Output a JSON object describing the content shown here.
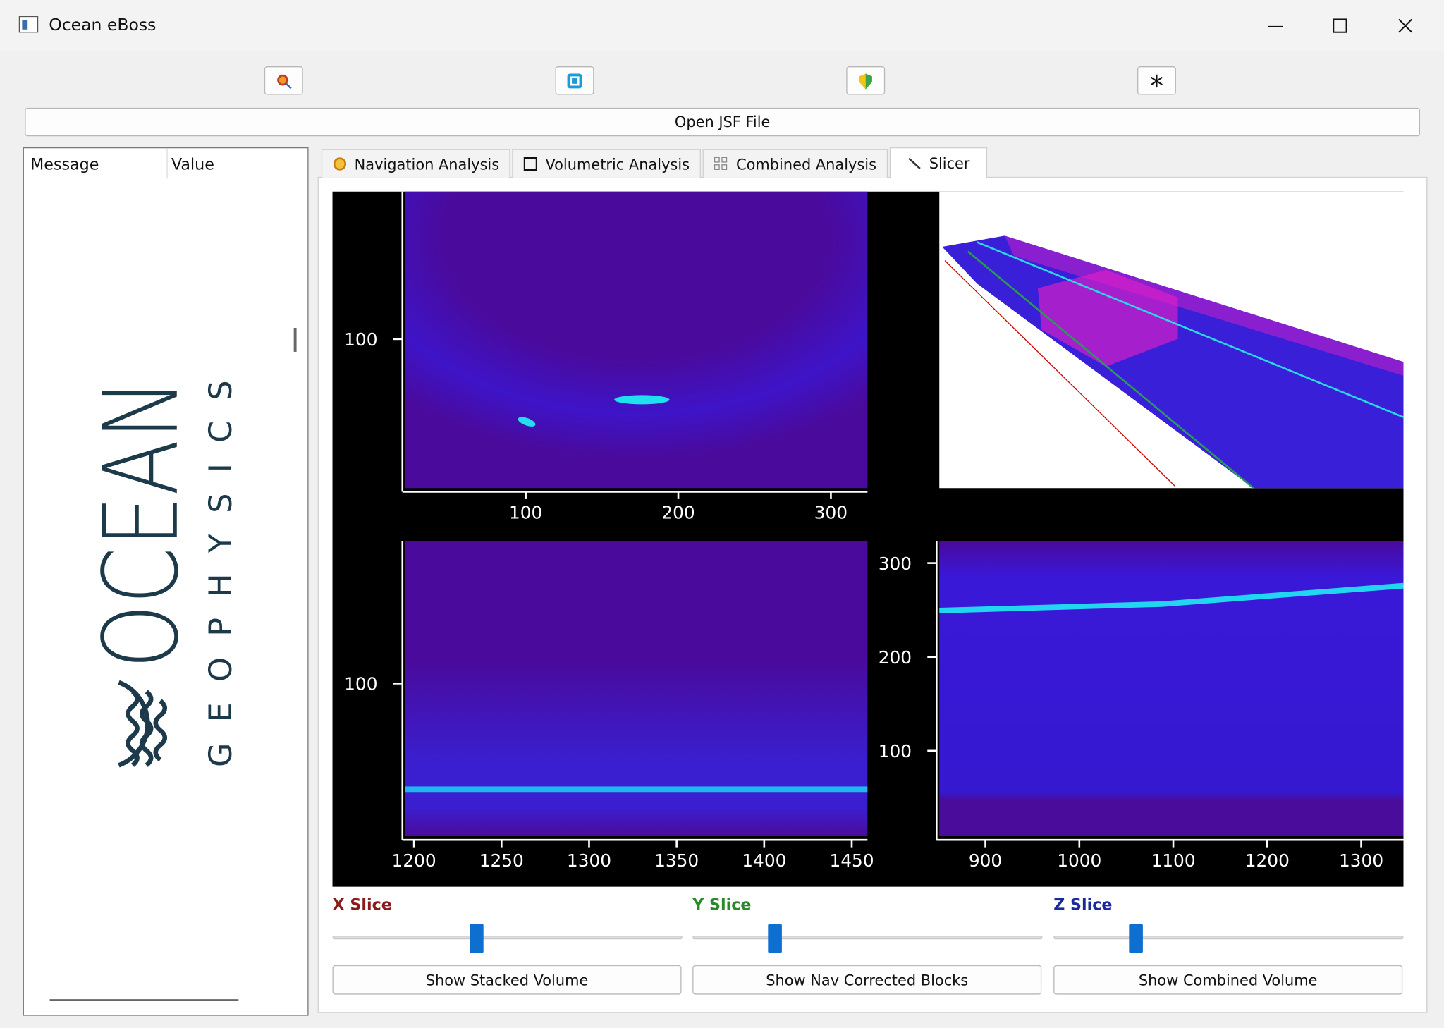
{
  "window": {
    "title": "Ocean eBoss"
  },
  "toolbar": {
    "open_button": "Open JSF File"
  },
  "tree": {
    "headers": [
      "Message",
      "Value"
    ]
  },
  "logo": {
    "wordmark": "OCEAN",
    "tagline": "GEOPHYSICS"
  },
  "tabs": [
    "Navigation Analysis",
    "Volumetric Analysis",
    "Combined Analysis",
    "Slicer"
  ],
  "plots": [
    {
      "xlim": [
        21,
        324
      ],
      "ylim": [
        2,
        197
      ],
      "xticks": [
        100,
        200,
        300
      ],
      "yticks": [
        100
      ]
    },
    {
      "xlim": [
        1195,
        1459
      ],
      "ylim": [
        0,
        193
      ],
      "xticks": [
        1200,
        1250,
        1300,
        1350,
        1400,
        1450
      ],
      "yticks": [
        100
      ]
    },
    {
      "xlim": [
        851,
        1345
      ],
      "ylim": [
        9,
        323
      ],
      "xticks": [
        900,
        1000,
        1100,
        1200,
        1300
      ],
      "yticks": [
        100,
        200,
        300
      ]
    }
  ],
  "slices": [
    {
      "label": "X Slice",
      "color": "#8b1a1a",
      "button": "Show Stacked Volume"
    },
    {
      "label": "Y Slice",
      "color": "#2a8a2a",
      "button": "Show Nav Corrected Blocks"
    },
    {
      "label": "Z Slice",
      "color": "#1a2a9a",
      "button": "Show Combined Volume"
    }
  ]
}
